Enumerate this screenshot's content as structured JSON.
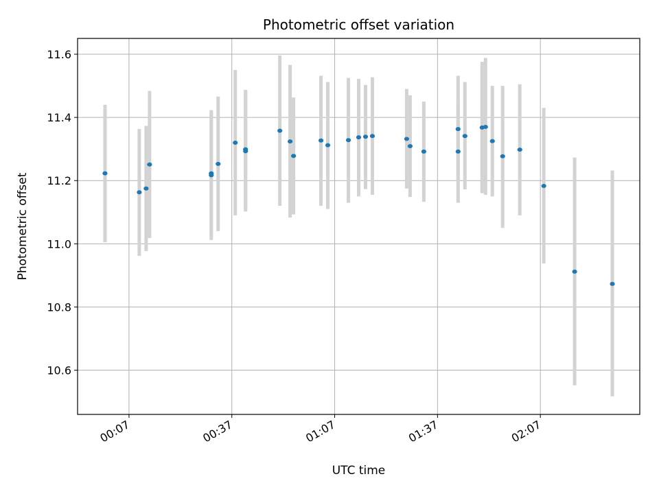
{
  "chart_data": {
    "type": "scatter",
    "title": "Photometric offset variation",
    "xlabel": "UTC time",
    "ylabel": "Photometric offset",
    "xlim": [
      "23:52",
      "02:36"
    ],
    "ylim": [
      10.46,
      11.65
    ],
    "x_ticks": [
      "00:07",
      "00:37",
      "01:07",
      "01:37",
      "02:07"
    ],
    "y_ticks": [
      10.6,
      10.8,
      11.0,
      11.2,
      11.4,
      11.6
    ],
    "grid": true,
    "colors": {
      "point": "#1f77b4",
      "errorbar": "#d3d3d3",
      "grid": "#b0b0b0"
    },
    "points": [
      {
        "x": "00:00",
        "y": 11.223,
        "low": 11.005,
        "high": 11.44
      },
      {
        "x": "00:10",
        "y": 11.163,
        "low": 10.962,
        "high": 11.363
      },
      {
        "x": "00:12",
        "y": 11.175,
        "low": 10.977,
        "high": 11.373
      },
      {
        "x": "00:13",
        "y": 11.251,
        "low": 11.018,
        "high": 11.484
      },
      {
        "x": "00:31",
        "y": 11.217,
        "low": 11.012,
        "high": 11.423
      },
      {
        "x": "00:31",
        "y": 11.223,
        "low": 11.025,
        "high": 11.42
      },
      {
        "x": "00:33",
        "y": 11.253,
        "low": 11.04,
        "high": 11.466
      },
      {
        "x": "00:38",
        "y": 11.32,
        "low": 11.09,
        "high": 11.55
      },
      {
        "x": "00:41",
        "y": 11.293,
        "low": 11.102,
        "high": 11.484
      },
      {
        "x": "00:41",
        "y": 11.299,
        "low": 11.11,
        "high": 11.487
      },
      {
        "x": "00:51",
        "y": 11.358,
        "low": 11.12,
        "high": 11.596
      },
      {
        "x": "00:54",
        "y": 11.324,
        "low": 11.083,
        "high": 11.566
      },
      {
        "x": "00:55",
        "y": 11.278,
        "low": 11.093,
        "high": 11.463
      },
      {
        "x": "01:03",
        "y": 11.327,
        "low": 11.12,
        "high": 11.532
      },
      {
        "x": "01:05",
        "y": 11.312,
        "low": 11.11,
        "high": 11.512
      },
      {
        "x": "01:11",
        "y": 11.328,
        "low": 11.13,
        "high": 11.525
      },
      {
        "x": "01:14",
        "y": 11.337,
        "low": 11.15,
        "high": 11.522
      },
      {
        "x": "01:16",
        "y": 11.339,
        "low": 11.173,
        "high": 11.503
      },
      {
        "x": "01:18",
        "y": 11.341,
        "low": 11.155,
        "high": 11.527
      },
      {
        "x": "01:28",
        "y": 11.332,
        "low": 11.175,
        "high": 11.49
      },
      {
        "x": "01:29",
        "y": 11.309,
        "low": 11.148,
        "high": 11.47
      },
      {
        "x": "01:33",
        "y": 11.292,
        "low": 11.133,
        "high": 11.45
      },
      {
        "x": "01:43",
        "y": 11.292,
        "low": 11.13,
        "high": 11.455
      },
      {
        "x": "01:43",
        "y": 11.363,
        "low": 11.193,
        "high": 11.532
      },
      {
        "x": "01:45",
        "y": 11.341,
        "low": 11.172,
        "high": 11.512
      },
      {
        "x": "01:50",
        "y": 11.368,
        "low": 11.16,
        "high": 11.576
      },
      {
        "x": "01:51",
        "y": 11.37,
        "low": 11.155,
        "high": 11.588
      },
      {
        "x": "01:53",
        "y": 11.325,
        "low": 11.15,
        "high": 11.5
      },
      {
        "x": "01:56",
        "y": 11.277,
        "low": 11.05,
        "high": 11.5
      },
      {
        "x": "02:01",
        "y": 11.298,
        "low": 11.09,
        "high": 11.505
      },
      {
        "x": "02:08",
        "y": 11.183,
        "low": 10.938,
        "high": 11.43
      },
      {
        "x": "02:17",
        "y": 10.912,
        "low": 10.552,
        "high": 11.273
      },
      {
        "x": "02:28",
        "y": 10.873,
        "low": 10.517,
        "high": 11.232
      }
    ]
  }
}
